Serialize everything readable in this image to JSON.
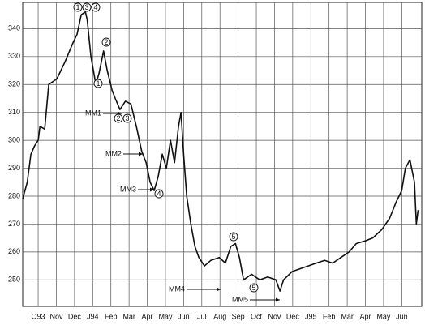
{
  "chart_data": {
    "type": "line",
    "x": [
      -0.85,
      -0.6,
      -0.4,
      -0.2,
      0,
      0.1,
      0.36,
      0.58,
      1.03,
      1.47,
      1.92,
      2.14,
      2.37,
      2.6,
      2.7,
      2.9,
      3.04,
      3.17,
      3.35,
      3.6,
      3.8,
      4.06,
      4.24,
      4.5,
      4.8,
      5.1,
      5.4,
      5.7,
      5.94,
      6.16,
      6.38,
      6.6,
      6.83,
      7.05,
      7.28,
      7.5,
      7.72,
      7.86,
      8.0,
      8.17,
      8.4,
      8.62,
      8.84,
      9.15,
      9.5,
      9.96,
      10.3,
      10.6,
      10.85,
      11.07,
      11.3,
      11.74,
      12.19,
      12.63,
      13.08,
      13.3,
      13.5,
      13.97,
      14.42,
      14.86,
      15.3,
      15.76,
      16.2,
      16.65,
      17.1,
      17.5,
      18.0,
      18.4,
      18.9,
      19.33,
      19.7,
      20.0,
      20.2,
      20.45,
      20.7,
      20.8,
      20.9
    ],
    "series": [
      {
        "color": "#111111",
        "values": [
          279,
          285,
          295,
          298,
          300,
          305,
          304,
          320,
          322,
          328,
          335,
          338,
          345,
          346,
          343,
          330,
          325,
          320,
          324,
          332,
          325,
          318,
          315,
          311,
          314,
          313,
          305,
          296,
          292,
          285,
          282,
          287,
          295,
          290,
          300,
          292,
          305,
          310,
          295,
          280,
          270,
          262,
          258,
          255,
          257,
          258,
          256,
          262,
          263,
          258,
          250,
          252,
          250,
          251,
          250,
          246,
          250,
          253,
          254,
          255,
          256,
          257,
          256,
          258,
          260,
          263,
          264,
          265,
          268,
          272,
          278,
          282,
          290,
          293,
          285,
          270,
          275
        ]
      }
    ],
    "xlim": [
      -0.85,
      21.1
    ],
    "xticks": [
      {
        "value": 0,
        "label": "O93"
      },
      {
        "value": 1,
        "label": "Nov"
      },
      {
        "value": 2,
        "label": "Dec"
      },
      {
        "value": 3,
        "label": "J94"
      },
      {
        "value": 4,
        "label": "Feb"
      },
      {
        "value": 5,
        "label": "Mar"
      },
      {
        "value": 6,
        "label": "Apr"
      },
      {
        "value": 7,
        "label": "May"
      },
      {
        "value": 8,
        "label": "Jun"
      },
      {
        "value": 9,
        "label": "Jul"
      },
      {
        "value": 10,
        "label": "Aug"
      },
      {
        "value": 11,
        "label": "Sep"
      },
      {
        "value": 12,
        "label": "Oct"
      },
      {
        "value": 13,
        "label": "Nov"
      },
      {
        "value": 14,
        "label": "Dec"
      },
      {
        "value": 15,
        "label": "J95"
      },
      {
        "value": 16,
        "label": "Feb"
      },
      {
        "value": 17,
        "label": "Mar"
      },
      {
        "value": 18,
        "label": "Apr"
      },
      {
        "value": 19,
        "label": "May"
      },
      {
        "value": 20,
        "label": "Jun"
      }
    ],
    "ylim": [
      240.5,
      349.4
    ],
    "yticks": [
      250,
      260,
      270,
      280,
      290,
      300,
      310,
      320,
      330,
      340
    ],
    "grid": true,
    "annotations": [
      "1",
      "3",
      "4",
      "2",
      "1",
      "MM1",
      "2",
      "3",
      "MM2",
      "MM3",
      "4",
      "MM4",
      "5",
      "MM5",
      "5"
    ]
  }
}
